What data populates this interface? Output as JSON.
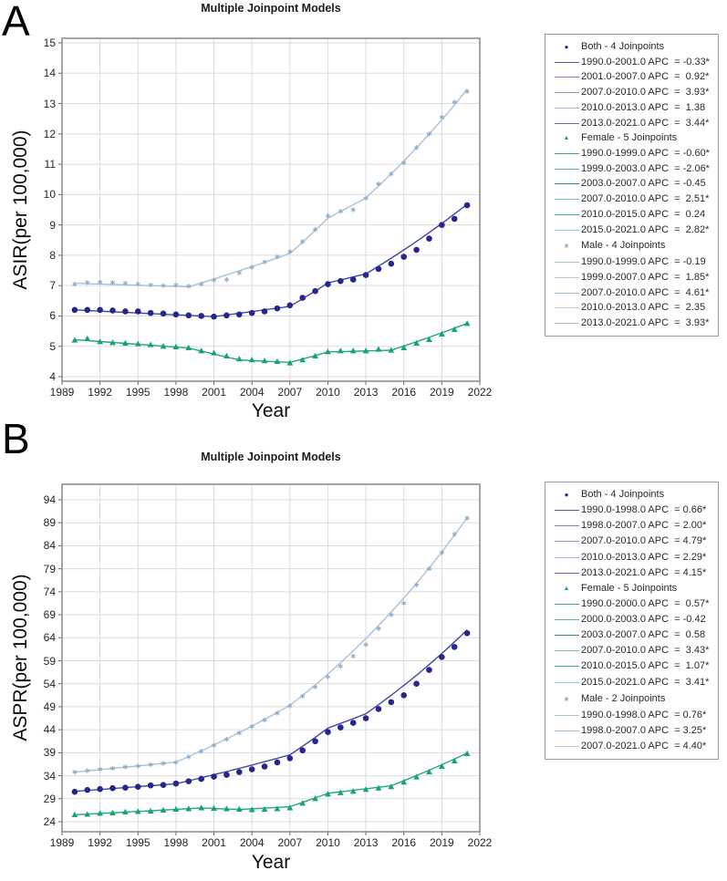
{
  "chart_data": [
    {
      "type": "line",
      "panel_letter": "A",
      "title": "Multiple Joinpoint Models",
      "xlabel": "Year",
      "ylabel": "ASIR(per 100,000)",
      "xlim": [
        1989,
        2022
      ],
      "ylim": [
        3.9,
        15.15
      ],
      "grid": true,
      "legend_position": "right",
      "x_ticks": [
        1989,
        1992,
        1995,
        1998,
        2001,
        2004,
        2007,
        2010,
        2013,
        2016,
        2019,
        2022
      ],
      "y_ticks": [
        4,
        5,
        6,
        7,
        8,
        9,
        10,
        11,
        12,
        13,
        14,
        15
      ],
      "years": [
        1990,
        1991,
        1992,
        1993,
        1994,
        1995,
        1996,
        1997,
        1998,
        1999,
        2000,
        2001,
        2002,
        2003,
        2004,
        2005,
        2006,
        2007,
        2008,
        2009,
        2010,
        2011,
        2012,
        2013,
        2014,
        2015,
        2016,
        2017,
        2018,
        2019,
        2020,
        2021
      ],
      "series": [
        {
          "name": "Both - 4 Joinpoints",
          "marker": "dot",
          "marker_color": "#26268c",
          "line_color": "#4347a8",
          "values": [
            6.2,
            6.2,
            6.2,
            6.18,
            6.15,
            6.15,
            6.1,
            6.08,
            6.05,
            6.02,
            6.0,
            5.98,
            6.02,
            6.05,
            6.1,
            6.15,
            6.25,
            6.35,
            6.6,
            6.82,
            7.05,
            7.15,
            7.2,
            7.35,
            7.55,
            7.72,
            7.95,
            8.18,
            8.55,
            9.0,
            9.2,
            9.65
          ],
          "fit": {
            "start": 6.2,
            "segments": [
              {
                "from": 1990,
                "to": 2001,
                "apc": -0.33
              },
              {
                "from": 2001,
                "to": 2007,
                "apc": 0.92
              },
              {
                "from": 2007,
                "to": 2010,
                "apc": 3.93
              },
              {
                "from": 2010,
                "to": 2013,
                "apc": 1.38
              },
              {
                "from": 2013,
                "to": 2021,
                "apc": 3.44
              }
            ]
          }
        },
        {
          "name": "Female - 5 Joinpoints",
          "marker": "triangle",
          "marker_color": "#17a374",
          "line_color": "#22a87c",
          "values": [
            5.2,
            5.25,
            5.15,
            5.12,
            5.1,
            5.08,
            5.05,
            5.0,
            4.98,
            4.95,
            4.85,
            4.78,
            4.68,
            4.58,
            4.55,
            4.52,
            4.5,
            4.45,
            4.55,
            4.68,
            4.82,
            4.85,
            4.85,
            4.85,
            4.9,
            4.87,
            4.95,
            5.1,
            5.22,
            5.4,
            5.55,
            5.75
          ],
          "fit": {
            "start": 5.22,
            "segments": [
              {
                "from": 1990,
                "to": 1999,
                "apc": -0.6
              },
              {
                "from": 1999,
                "to": 2003,
                "apc": -2.06
              },
              {
                "from": 2003,
                "to": 2007,
                "apc": -0.45
              },
              {
                "from": 2007,
                "to": 2010,
                "apc": 2.51
              },
              {
                "from": 2010,
                "to": 2015,
                "apc": 0.24
              },
              {
                "from": 2015,
                "to": 2021,
                "apc": 2.82
              }
            ]
          }
        },
        {
          "name": "Male - 4 Joinpoints",
          "marker": "star",
          "marker_color": "#8fadc8",
          "line_color": "#a9c2d7",
          "values": [
            7.05,
            7.1,
            7.12,
            7.1,
            7.08,
            7.05,
            7.02,
            7.0,
            7.02,
            6.98,
            7.05,
            7.18,
            7.2,
            7.42,
            7.6,
            7.78,
            7.95,
            8.12,
            8.45,
            8.85,
            9.3,
            9.45,
            9.5,
            9.88,
            10.35,
            10.68,
            11.05,
            11.55,
            12.0,
            12.55,
            13.05,
            13.4
          ],
          "fit": {
            "start": 7.08,
            "segments": [
              {
                "from": 1990,
                "to": 1999,
                "apc": -0.19
              },
              {
                "from": 1999,
                "to": 2007,
                "apc": 1.85
              },
              {
                "from": 2007,
                "to": 2010,
                "apc": 4.61
              },
              {
                "from": 2010,
                "to": 2013,
                "apc": 2.35
              },
              {
                "from": 2013,
                "to": 2021,
                "apc": 3.93
              }
            ]
          }
        }
      ],
      "legend": {
        "rows": [
          {
            "type": "header",
            "marker": "dot",
            "color": "#26268c",
            "text": "Both - 4 Joinpoints"
          },
          {
            "type": "segment",
            "color": "#565a9f",
            "text": "1990.0-2001.0 APC  = -0.33*"
          },
          {
            "type": "segment",
            "color": "#7d82c4",
            "text": "2001.0-2007.0 APC  =  0.92*"
          },
          {
            "type": "segment",
            "color": "#989ccd",
            "text": "2007.0-2010.0 APC  =  3.93*"
          },
          {
            "type": "segment",
            "color": "#aab0de",
            "text": "2010.0-2013.0 APC  =  1.38"
          },
          {
            "type": "segment",
            "color": "#686db6",
            "text": "2013.0-2021.0 APC  =  3.44*"
          },
          {
            "type": "header",
            "marker": "triangle",
            "color": "#17a374",
            "text": "Female - 5 Joinpoints"
          },
          {
            "type": "segment",
            "color": "#35a87f",
            "text": "1990.0-1999.0 APC  = -0.60*"
          },
          {
            "type": "segment",
            "color": "#4fbd96",
            "text": "1999.0-2003.0 APC  = -2.06*"
          },
          {
            "type": "segment",
            "color": "#289b72",
            "text": "2003.0-2007.0 APC  = -0.45"
          },
          {
            "type": "segment",
            "color": "#68c8a6",
            "text": "2007.0-2010.0 APC  =  2.51*"
          },
          {
            "type": "segment",
            "color": "#3fb28a",
            "text": "2010.0-2015.0 APC  =  0.24"
          },
          {
            "type": "segment",
            "color": "#82d3b7",
            "text": "2015.0-2021.0 APC  =  2.82*"
          },
          {
            "type": "header",
            "marker": "star",
            "color": "#8fadc8",
            "text": "Male - 4 Joinpoints"
          },
          {
            "type": "segment",
            "color": "#a8bfd5",
            "text": "1990.0-1999.0 APC  = -0.19"
          },
          {
            "type": "segment",
            "color": "#b4c9db",
            "text": "1999.0-2007.0 APC  =  1.85*"
          },
          {
            "type": "segment",
            "color": "#9db7cf",
            "text": "2007.0-2010.0 APC  =  4.61*"
          },
          {
            "type": "segment",
            "color": "#bed1e1",
            "text": "2010.0-2013.0 APC  =  2.35"
          },
          {
            "type": "segment",
            "color": "#a8bfd5",
            "text": "2013.0-2021.0 APC  =  3.93*"
          }
        ]
      }
    },
    {
      "type": "line",
      "panel_letter": "B",
      "title": "Multiple Joinpoint Models",
      "xlabel": "Year",
      "ylabel": "ASPR(per 100,000)",
      "xlim": [
        1989,
        2022
      ],
      "ylim": [
        21.6,
        97.2
      ],
      "grid": true,
      "legend_position": "right",
      "x_ticks": [
        1989,
        1992,
        1995,
        1998,
        2001,
        2004,
        2007,
        2010,
        2013,
        2016,
        2019,
        2022
      ],
      "y_ticks": [
        24,
        29,
        34,
        39,
        44,
        49,
        54,
        59,
        64,
        69,
        74,
        79,
        84,
        89,
        94
      ],
      "years": [
        1990,
        1991,
        1992,
        1993,
        1994,
        1995,
        1996,
        1997,
        1998,
        1999,
        2000,
        2001,
        2002,
        2003,
        2004,
        2005,
        2006,
        2007,
        2008,
        2009,
        2010,
        2011,
        2012,
        2013,
        2014,
        2015,
        2016,
        2017,
        2018,
        2019,
        2020,
        2021
      ],
      "series": [
        {
          "name": "Both - 4 Joinpoints",
          "marker": "dot",
          "marker_color": "#26268c",
          "line_color": "#4347a8",
          "values": [
            30.5,
            30.9,
            31.1,
            31.3,
            31.4,
            31.6,
            31.9,
            32.0,
            32.3,
            32.8,
            33.3,
            33.8,
            34.2,
            34.8,
            35.4,
            36.0,
            36.9,
            37.8,
            39.5,
            41.5,
            43.5,
            44.5,
            45.5,
            46.5,
            48.5,
            50.0,
            51.5,
            54.0,
            57.0,
            59.8,
            62.0,
            65.0
          ],
          "fit": {
            "start": 30.6,
            "segments": [
              {
                "from": 1990,
                "to": 1998,
                "apc": 0.66
              },
              {
                "from": 1998,
                "to": 2007,
                "apc": 2.0
              },
              {
                "from": 2007,
                "to": 2010,
                "apc": 4.79
              },
              {
                "from": 2010,
                "to": 2013,
                "apc": 2.29
              },
              {
                "from": 2013,
                "to": 2021,
                "apc": 4.15
              }
            ]
          }
        },
        {
          "name": "Female - 5 Joinpoints",
          "marker": "triangle",
          "marker_color": "#17a374",
          "line_color": "#22a87c",
          "values": [
            25.5,
            25.6,
            25.8,
            25.9,
            26.1,
            26.2,
            26.3,
            26.5,
            26.7,
            26.8,
            27.0,
            26.9,
            26.8,
            26.7,
            26.6,
            26.7,
            26.8,
            27.0,
            28.0,
            29.0,
            30.0,
            30.3,
            30.6,
            31.0,
            31.3,
            31.6,
            32.6,
            33.7,
            34.8,
            36.0,
            37.2,
            38.8
          ],
          "fit": {
            "start": 25.5,
            "segments": [
              {
                "from": 1990,
                "to": 2000,
                "apc": 0.57
              },
              {
                "from": 2000,
                "to": 2003,
                "apc": -0.42
              },
              {
                "from": 2003,
                "to": 2007,
                "apc": 0.58
              },
              {
                "from": 2007,
                "to": 2010,
                "apc": 3.43
              },
              {
                "from": 2010,
                "to": 2015,
                "apc": 1.07
              },
              {
                "from": 2015,
                "to": 2021,
                "apc": 3.41
              }
            ]
          }
        },
        {
          "name": "Male - 2 Joinpoints",
          "marker": "star",
          "marker_color": "#8fadc8",
          "line_color": "#a9c2d7",
          "values": [
            34.8,
            35.1,
            35.4,
            35.6,
            35.9,
            36.1,
            36.4,
            36.7,
            36.9,
            38.1,
            39.3,
            40.6,
            41.9,
            43.3,
            44.7,
            46.1,
            47.6,
            49.2,
            51.3,
            53.3,
            55.5,
            57.8,
            60.0,
            62.5,
            66.0,
            69.0,
            71.5,
            75.5,
            79.0,
            82.5,
            86.5,
            90.0
          ],
          "fit": {
            "start": 34.8,
            "segments": [
              {
                "from": 1990,
                "to": 1998,
                "apc": 0.76
              },
              {
                "from": 1998,
                "to": 2007,
                "apc": 3.25
              },
              {
                "from": 2007,
                "to": 2021,
                "apc": 4.4
              }
            ]
          }
        }
      ],
      "legend": {
        "rows": [
          {
            "type": "header",
            "marker": "dot",
            "color": "#26268c",
            "text": "Both - 4 Joinpoints"
          },
          {
            "type": "segment",
            "color": "#565a9f",
            "text": "1990.0-1998.0 APC  = 0.66*"
          },
          {
            "type": "segment",
            "color": "#7d82c4",
            "text": "1998.0-2007.0 APC  = 2.00*"
          },
          {
            "type": "segment",
            "color": "#989ccd",
            "text": "2007.0-2010.0 APC  = 4.79*"
          },
          {
            "type": "segment",
            "color": "#aab0de",
            "text": "2010.0-2013.0 APC  = 2.29*"
          },
          {
            "type": "segment",
            "color": "#686db6",
            "text": "2013.0-2021.0 APC  = 4.15*"
          },
          {
            "type": "header",
            "marker": "triangle",
            "color": "#17a374",
            "text": "Female - 5 Joinpoints"
          },
          {
            "type": "segment",
            "color": "#35a87f",
            "text": "1990.0-2000.0 APC  =  0.57*"
          },
          {
            "type": "segment",
            "color": "#4fbd96",
            "text": "2000.0-2003.0 APC  = -0.42"
          },
          {
            "type": "segment",
            "color": "#289b72",
            "text": "2003.0-2007.0 APC  =  0.58"
          },
          {
            "type": "segment",
            "color": "#68c8a6",
            "text": "2007.0-2010.0 APC  =  3.43*"
          },
          {
            "type": "segment",
            "color": "#3fb28a",
            "text": "2010.0-2015.0 APC  =  1.07*"
          },
          {
            "type": "segment",
            "color": "#82d3b7",
            "text": "2015.0-2021.0 APC  =  3.41*"
          },
          {
            "type": "header",
            "marker": "star",
            "color": "#8fadc8",
            "text": "Male - 2 Joinpoints"
          },
          {
            "type": "segment",
            "color": "#a8bfd5",
            "text": "1990.0-1998.0 APC  = 0.76*"
          },
          {
            "type": "segment",
            "color": "#9db7cf",
            "text": "1998.0-2007.0 APC  = 3.25*"
          },
          {
            "type": "segment",
            "color": "#b4c9db",
            "text": "2007.0-2021.0 APC  = 4.40*"
          }
        ]
      }
    }
  ],
  "style_colors": {
    "grid": "#dcdcdc",
    "plot_border": "#8f8f8f",
    "tick": "#666666",
    "tick_label": "#262626"
  }
}
